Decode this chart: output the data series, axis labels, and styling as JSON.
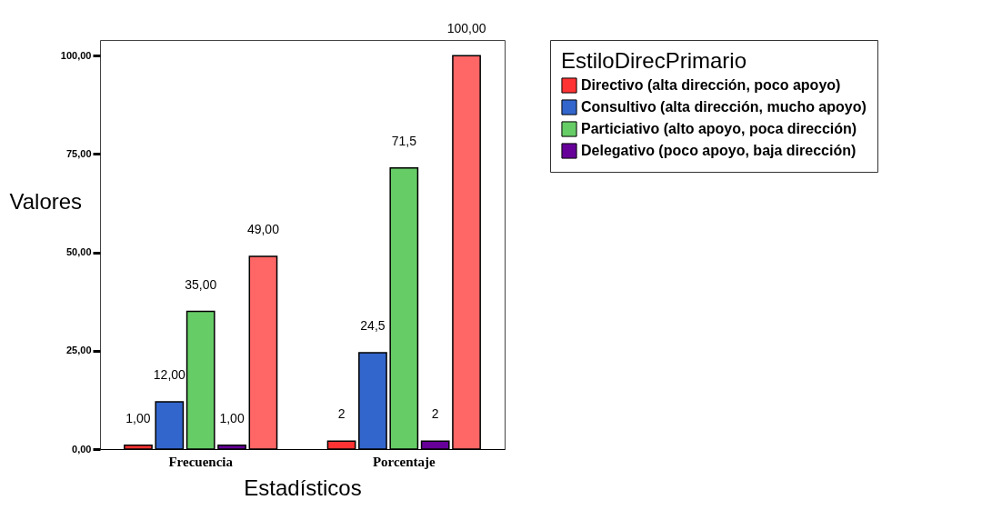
{
  "chart_data": {
    "type": "bar",
    "xlabel": "Estadísticos",
    "ylabel": "Valores",
    "legend_title": "EstiloDirecPrimario",
    "categories": [
      "Frecuencia",
      "Porcentaje"
    ],
    "series": [
      {
        "name": "Directivo (alta dirección, poco apoyo)",
        "color": "#ff3333",
        "values": [
          1,
          2
        ],
        "value_labels": [
          "1,00",
          "2"
        ]
      },
      {
        "name": "Consultivo (alta dirección, mucho apoyo)",
        "color": "#3366cc",
        "values": [
          12,
          24.5
        ],
        "value_labels": [
          "12,00",
          "24,5"
        ]
      },
      {
        "name": "Particiativo (alto apoyo, poca dirección)",
        "color": "#66cc66",
        "values": [
          35,
          71.5
        ],
        "value_labels": [
          "35,00",
          "71,5"
        ]
      },
      {
        "name": "Delegativo (poco apoyo, baja dirección)",
        "color": "#660099",
        "values": [
          1,
          2
        ],
        "value_labels": [
          "1,00",
          "2"
        ]
      },
      {
        "color": "#ff6666",
        "values": [
          49,
          100
        ],
        "value_labels": [
          "49,00",
          "100,00"
        ]
      }
    ],
    "ylim": [
      0,
      104
    ],
    "yticks": [
      {
        "value": 0,
        "label": "0,00"
      },
      {
        "value": 25,
        "label": "25,00"
      },
      {
        "value": 50,
        "label": "50,00"
      },
      {
        "value": 75,
        "label": "75,00"
      },
      {
        "value": 100,
        "label": "100,00"
      }
    ],
    "grid": false,
    "legend": "right"
  }
}
